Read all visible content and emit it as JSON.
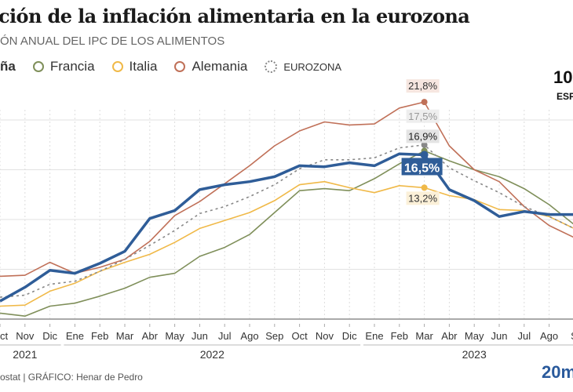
{
  "title": "ción de la inflación alimentaria en la eurozona",
  "subtitle": "ÓN ANUAL DEL IPC DE LOS ALIMENTOS",
  "legend": [
    {
      "label": "ña",
      "color": "#2f5d98"
    },
    {
      "label": "Francia",
      "color": "#7f8f5a"
    },
    {
      "label": "Italia",
      "color": "#f0b948"
    },
    {
      "label": "Alemania",
      "color": "#c07058"
    },
    {
      "label": "EUROZONA",
      "color": "#888888"
    }
  ],
  "highlight": {
    "value": "10",
    "label": "ESP"
  },
  "footer": "ostat  |  GRÁFICO: Henar de Pedro",
  "logo": "20m",
  "chart_data": {
    "type": "line",
    "x": [
      "Oct",
      "Nov",
      "Dic",
      "Ene",
      "Feb",
      "Mar",
      "Abr",
      "May",
      "Jun",
      "Jul",
      "Ago",
      "Sep",
      "Oct",
      "Nov",
      "Dic",
      "Ene",
      "Feb",
      "Mar",
      "Abr",
      "May",
      "Jun",
      "Jul",
      "Ago",
      "S"
    ],
    "year_labels": [
      {
        "label": "2021",
        "from": 0,
        "to": 2
      },
      {
        "label": "2022",
        "from": 3,
        "to": 14
      },
      {
        "label": "2023",
        "from": 15,
        "to": 23
      }
    ],
    "ylim": [
      0,
      25
    ],
    "yticks": [
      0,
      5,
      10,
      15,
      20
    ],
    "grid": true,
    "legend_position": "top-left",
    "series": [
      {
        "key": "francia",
        "color": "#7f8f5a",
        "width": 1.6,
        "values": [
          0.6,
          0.3,
          1.3,
          1.6,
          2.3,
          3.1,
          4.2,
          4.6,
          6.3,
          7.2,
          8.5,
          10.7,
          12.9,
          13.1,
          12.9,
          14.1,
          15.6,
          16.9,
          15.9,
          15.0,
          14.3,
          13.1,
          11.5,
          9.5
        ]
      },
      {
        "key": "italia",
        "color": "#f0b948",
        "width": 1.6,
        "values": [
          1.3,
          1.4,
          2.8,
          3.6,
          4.8,
          5.7,
          6.5,
          7.7,
          9.1,
          9.9,
          10.7,
          11.9,
          13.5,
          13.8,
          13.2,
          12.7,
          13.4,
          13.2,
          12.4,
          12.0,
          11.0,
          10.9,
          10.3,
          9.1
        ]
      },
      {
        "key": "alemania",
        "color": "#c07058",
        "width": 1.6,
        "values": [
          4.3,
          4.4,
          5.7,
          4.6,
          5.2,
          6.0,
          7.8,
          10.4,
          11.8,
          13.6,
          15.4,
          17.4,
          18.9,
          19.8,
          19.5,
          19.6,
          21.2,
          21.8,
          17.4,
          15.0,
          13.8,
          11.3,
          9.4,
          8.2
        ]
      },
      {
        "key": "eurozona",
        "color": "#888888",
        "width": 1.6,
        "dashed": true,
        "values": [
          2.2,
          2.4,
          3.5,
          3.8,
          4.8,
          6.0,
          7.4,
          8.9,
          10.6,
          11.3,
          12.3,
          13.5,
          15.1,
          16.0,
          16.0,
          16.2,
          17.2,
          17.5,
          15.2,
          13.9,
          12.7,
          11.3,
          10.3,
          9.1
        ]
      },
      {
        "key": "espana",
        "color": "#2f5d98",
        "width": 3.5,
        "values": [
          1.8,
          3.2,
          4.9,
          4.6,
          5.6,
          6.8,
          10.1,
          10.9,
          13.0,
          13.5,
          13.8,
          14.3,
          15.4,
          15.3,
          15.7,
          15.4,
          16.6,
          16.5,
          13.0,
          11.9,
          10.3,
          10.8,
          10.5,
          10.5
        ]
      }
    ],
    "annotations": [
      {
        "series": "alemania",
        "index": 17,
        "text": "21,8%",
        "bg": "#f6e6e0",
        "fg": "#333333"
      },
      {
        "series": "eurozona",
        "index": 17,
        "text": "17,5%",
        "bg": "#eeeeee",
        "fg": "#999999"
      },
      {
        "series": "francia",
        "index": 17,
        "text": "16,9%",
        "bg": "#e4e4e4",
        "fg": "#222222"
      },
      {
        "series": "espana",
        "index": 17,
        "text": "16,5%",
        "bg": "#2f5d98",
        "fg": "#ffffff"
      },
      {
        "series": "italia",
        "index": 17,
        "text": "13,2%",
        "bg": "#fbf0d8",
        "fg": "#333333"
      }
    ]
  }
}
